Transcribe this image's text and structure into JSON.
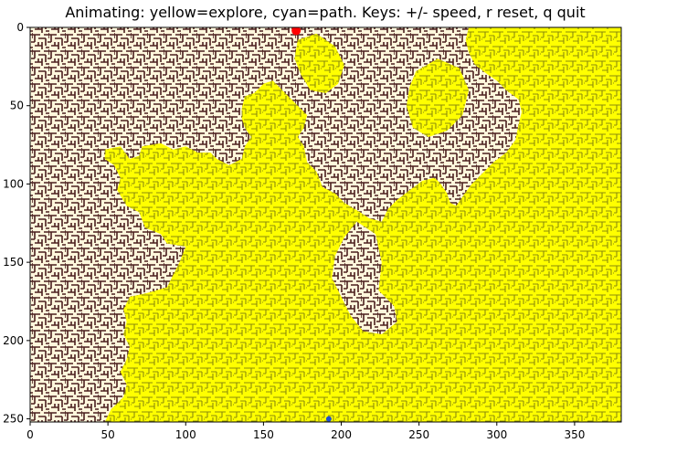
{
  "window": {
    "title": "Animating: yellow=explore, cyan=path. Keys: +/- speed, r reset, q quit"
  },
  "colors": {
    "wall": "#4a1f1f",
    "floor": "#fff7dc",
    "explored": "#ffff00",
    "explored_dark": "#2c2c14",
    "start_marker": "#ff0000",
    "goal_marker": "#1f4fd0"
  },
  "chart_data": {
    "type": "heatmap",
    "title": "Animating: yellow=explore, cyan=path. Keys: +/- speed, r reset, q quit",
    "xlabel": "",
    "ylabel": "",
    "xlim": [
      0,
      380
    ],
    "ylim": [
      252,
      0
    ],
    "x_ticks": [
      0,
      50,
      100,
      150,
      200,
      250,
      300,
      350
    ],
    "y_ticks": [
      0,
      50,
      100,
      150,
      200,
      250
    ],
    "grid": false,
    "start_point": {
      "x": 171,
      "y": 2
    },
    "goal_point": {
      "x": 192,
      "y": 250
    },
    "explored_region_outline": [
      [
        282,
        0
      ],
      [
        380,
        0
      ],
      [
        380,
        252
      ],
      [
        48,
        252
      ],
      [
        52,
        244
      ],
      [
        60,
        236
      ],
      [
        62,
        228
      ],
      [
        58,
        220
      ],
      [
        62,
        212
      ],
      [
        64,
        204
      ],
      [
        60,
        196
      ],
      [
        62,
        188
      ],
      [
        60,
        180
      ],
      [
        64,
        172
      ],
      [
        74,
        170
      ],
      [
        88,
        166
      ],
      [
        92,
        158
      ],
      [
        96,
        150
      ],
      [
        100,
        140
      ],
      [
        88,
        138
      ],
      [
        84,
        132
      ],
      [
        74,
        128
      ],
      [
        70,
        118
      ],
      [
        62,
        114
      ],
      [
        56,
        104
      ],
      [
        58,
        96
      ],
      [
        54,
        88
      ],
      [
        48,
        84
      ],
      [
        48,
        78
      ],
      [
        58,
        76
      ],
      [
        64,
        84
      ],
      [
        70,
        82
      ],
      [
        72,
        76
      ],
      [
        84,
        74
      ],
      [
        92,
        78
      ],
      [
        100,
        76
      ],
      [
        108,
        80
      ],
      [
        116,
        80
      ],
      [
        120,
        84
      ],
      [
        128,
        88
      ],
      [
        136,
        84
      ],
      [
        138,
        76
      ],
      [
        142,
        70
      ],
      [
        138,
        64
      ],
      [
        136,
        58
      ],
      [
        136,
        52
      ],
      [
        138,
        44
      ],
      [
        144,
        42
      ],
      [
        150,
        36
      ],
      [
        156,
        34
      ],
      [
        164,
        42
      ],
      [
        172,
        50
      ],
      [
        178,
        56
      ],
      [
        176,
        64
      ],
      [
        172,
        70
      ],
      [
        176,
        76
      ],
      [
        178,
        86
      ],
      [
        184,
        92
      ],
      [
        188,
        102
      ],
      [
        196,
        106
      ],
      [
        202,
        112
      ],
      [
        212,
        118
      ],
      [
        218,
        122
      ],
      [
        226,
        124
      ],
      [
        230,
        116
      ],
      [
        236,
        110
      ],
      [
        244,
        104
      ],
      [
        252,
        98
      ],
      [
        260,
        96
      ],
      [
        264,
        100
      ],
      [
        268,
        106
      ],
      [
        270,
        112
      ],
      [
        274,
        114
      ],
      [
        278,
        108
      ],
      [
        284,
        100
      ],
      [
        290,
        94
      ],
      [
        298,
        86
      ],
      [
        306,
        80
      ],
      [
        312,
        72
      ],
      [
        314,
        62
      ],
      [
        316,
        54
      ],
      [
        314,
        46
      ],
      [
        306,
        40
      ],
      [
        300,
        34
      ],
      [
        294,
        30
      ],
      [
        286,
        24
      ],
      [
        282,
        16
      ],
      [
        280,
        8
      ]
    ],
    "explored_island_outline": [
      [
        248,
        28
      ],
      [
        262,
        20
      ],
      [
        276,
        26
      ],
      [
        282,
        40
      ],
      [
        278,
        56
      ],
      [
        268,
        66
      ],
      [
        256,
        70
      ],
      [
        246,
        64
      ],
      [
        242,
        50
      ],
      [
        244,
        38
      ]
    ],
    "explored_patch_outline": [
      [
        172,
        8
      ],
      [
        184,
        4
      ],
      [
        196,
        12
      ],
      [
        202,
        24
      ],
      [
        198,
        36
      ],
      [
        190,
        42
      ],
      [
        180,
        40
      ],
      [
        174,
        30
      ],
      [
        170,
        20
      ]
    ],
    "unexplored_pocket_outline": [
      [
        210,
        124
      ],
      [
        222,
        132
      ],
      [
        226,
        150
      ],
      [
        224,
        168
      ],
      [
        234,
        178
      ],
      [
        236,
        188
      ],
      [
        226,
        196
      ],
      [
        214,
        194
      ],
      [
        206,
        184
      ],
      [
        200,
        172
      ],
      [
        194,
        160
      ],
      [
        196,
        146
      ],
      [
        202,
        134
      ]
    ],
    "unexplored_pocket2_outline": [
      [
        238,
        60
      ],
      [
        252,
        74
      ],
      [
        256,
        90
      ],
      [
        248,
        100
      ],
      [
        236,
        104
      ],
      [
        226,
        96
      ],
      [
        222,
        82
      ],
      [
        228,
        68
      ]
    ]
  }
}
